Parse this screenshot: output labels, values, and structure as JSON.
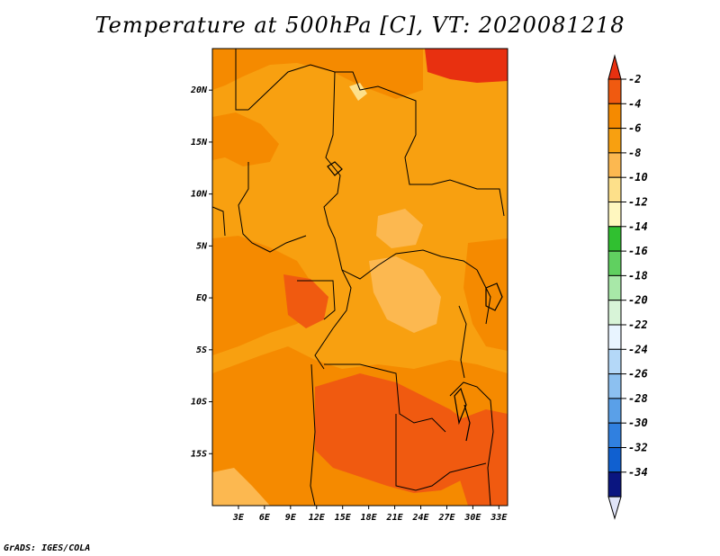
{
  "title": "Temperature at 500hPa [C], VT: 2020081218",
  "credit": "GrADS: IGES/COLA",
  "map": {
    "variable": "Temperature at 500hPa",
    "units": "C",
    "valid_time": "2020081218",
    "lon_range": [
      0,
      34
    ],
    "lat_range": [
      -20,
      24
    ],
    "lat_ticks": [
      {
        "value": 20,
        "label": "20N"
      },
      {
        "value": 15,
        "label": "15N"
      },
      {
        "value": 10,
        "label": "10N"
      },
      {
        "value": 5,
        "label": "5N"
      },
      {
        "value": 0,
        "label": "EQ"
      },
      {
        "value": -5,
        "label": "5S"
      },
      {
        "value": -10,
        "label": "10S"
      },
      {
        "value": -15,
        "label": "15S"
      }
    ],
    "lon_ticks": [
      {
        "value": 3,
        "label": "3E"
      },
      {
        "value": 6,
        "label": "6E"
      },
      {
        "value": 9,
        "label": "9E"
      },
      {
        "value": 12,
        "label": "12E"
      },
      {
        "value": 15,
        "label": "15E"
      },
      {
        "value": 18,
        "label": "18E"
      },
      {
        "value": 21,
        "label": "21E"
      },
      {
        "value": 24,
        "label": "24E"
      },
      {
        "value": 27,
        "label": "27E"
      },
      {
        "value": 30,
        "label": "30E"
      },
      {
        "value": 33,
        "label": "33E"
      }
    ]
  },
  "colorbar": {
    "levels": [
      {
        "label": "-2",
        "color": "#f05a10"
      },
      {
        "label": "-4",
        "color": "#f58a00"
      },
      {
        "label": "-6",
        "color": "#f8a010"
      },
      {
        "label": "-8",
        "color": "#fcb850"
      },
      {
        "label": "-10",
        "color": "#fde08a"
      },
      {
        "label": "-12",
        "color": "#fff7bf"
      },
      {
        "label": "-14",
        "color": "#30c030"
      },
      {
        "label": "-16",
        "color": "#60d060"
      },
      {
        "label": "-18",
        "color": "#a8e8a8"
      },
      {
        "label": "-20",
        "color": "#d8f4d8"
      },
      {
        "label": "-22",
        "color": "#e8f4ff"
      },
      {
        "label": "-24",
        "color": "#b4d8f8"
      },
      {
        "label": "-26",
        "color": "#8cc0f0"
      },
      {
        "label": "-28",
        "color": "#5aa0e8"
      },
      {
        "label": "-30",
        "color": "#3080e0"
      },
      {
        "label": "-32",
        "color": "#1060d0"
      },
      {
        "label": "-34",
        "color": "#0840b0"
      }
    ],
    "over_color": "#e83010",
    "under_color": "#0a1580",
    "bottom_triangle_color": "#e0e4f8"
  }
}
